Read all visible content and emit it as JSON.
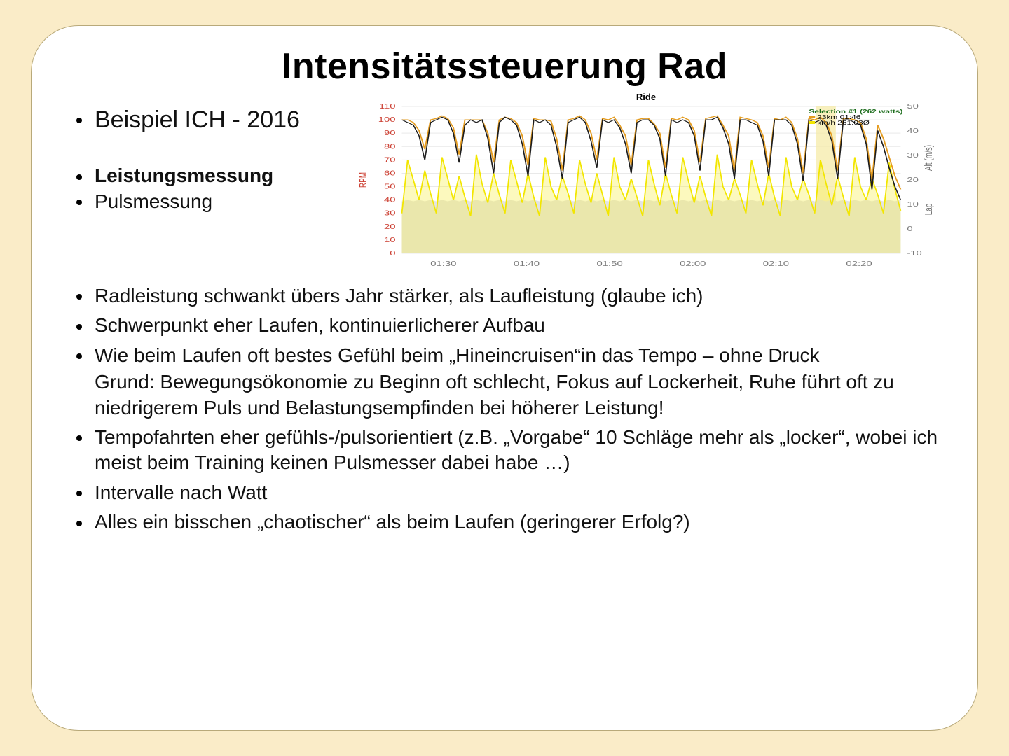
{
  "title": "Intensitätssteuerung Rad",
  "top_list": {
    "example": "Beispiel ICH - 2016",
    "power": "Leistungsmessung",
    "pulse": "Pulsmessung"
  },
  "main_list": {
    "i0": "Radleistung schwankt übers Jahr stärker, als Laufleistung (glaube ich)",
    "i1": "Schwerpunkt eher Laufen, kontinuierlicherer Aufbau",
    "i2": "Wie beim Laufen oft bestes Gefühl beim „Hineincruisen“in das Tempo – ohne Druck",
    "i2b": "Grund: Bewegungsökonomie zu Beginn oft schlecht, Fokus auf Lockerheit, Ruhe führt oft zu niedrigerem Puls und Belastungsempfinden bei höherer Leistung!",
    "i3": "Tempofahrten eher gefühls-/pulsorientiert (z.B. „Vorgabe“ 10 Schläge mehr als „locker“, wobei ich meist beim Training keinen Pulsmesser dabei habe …)",
    "i4": "Intervalle nach Watt",
    "i5": "Alles ein bisschen „chaotischer“ als beim Laufen (geringerer Erfolg?)"
  },
  "chart": {
    "title": "Ride",
    "plot_bg": "#ffffff",
    "grey_fill": "#e3e3e3",
    "grid_color": "#e9e9e9",
    "yellow_line": "#f2e600",
    "yellow_fill": "#f7ef44",
    "orange_line": "#e59c1f",
    "black_line": "#1c1c1c",
    "highlight_fill": "#f5e9a3",
    "x_ticks": [
      "01:30",
      "01:40",
      "01:50",
      "02:00",
      "02:10",
      "02:20"
    ],
    "y_left_ticks": [
      0,
      10,
      20,
      30,
      40,
      50,
      60,
      70,
      80,
      90,
      100,
      110
    ],
    "y_right_ticks": [
      -10,
      0,
      10,
      20,
      30,
      40,
      50
    ],
    "y_left_title": "RPM",
    "y_right_title_top": "Alt (m/s)",
    "y_right_title_bot": "Lap",
    "legend": {
      "title": "Selection #1 (262 watts)",
      "line1": "23km 01:46",
      "line2": "km/h 261.03Ø"
    },
    "black_series": [
      100,
      98,
      96,
      88,
      70,
      98,
      100,
      102,
      100,
      90,
      68,
      96,
      100,
      98,
      100,
      86,
      60,
      98,
      102,
      100,
      96,
      82,
      58,
      100,
      98,
      100,
      96,
      80,
      56,
      98,
      100,
      102,
      98,
      84,
      64,
      100,
      98,
      100,
      94,
      82,
      60,
      98,
      100,
      100,
      96,
      86,
      58,
      100,
      98,
      100,
      98,
      88,
      62,
      100,
      100,
      102,
      94,
      82,
      56,
      100,
      100,
      98,
      96,
      84,
      58,
      100,
      100,
      100,
      96,
      82,
      54,
      100,
      98,
      100,
      96,
      84,
      56,
      100,
      100,
      98,
      96,
      82,
      48,
      92,
      80,
      64,
      50,
      40
    ],
    "orange_series": [
      100,
      100,
      98,
      92,
      78,
      100,
      101,
      103,
      101,
      94,
      74,
      100,
      100,
      100,
      100,
      90,
      68,
      100,
      102,
      101,
      98,
      88,
      66,
      101,
      100,
      100,
      99,
      86,
      62,
      100,
      101,
      103,
      100,
      90,
      70,
      101,
      100,
      102,
      96,
      88,
      66,
      100,
      101,
      101,
      97,
      90,
      64,
      101,
      100,
      102,
      100,
      92,
      68,
      101,
      102,
      103,
      96,
      88,
      62,
      102,
      101,
      100,
      98,
      88,
      64,
      101,
      100,
      102,
      98,
      86,
      60,
      101,
      100,
      102,
      98,
      88,
      62,
      101,
      101,
      100,
      98,
      86,
      55,
      96,
      86,
      72,
      58,
      48
    ],
    "yellow_series": [
      30,
      70,
      55,
      40,
      62,
      45,
      30,
      72,
      56,
      40,
      58,
      42,
      28,
      74,
      52,
      38,
      60,
      44,
      30,
      70,
      54,
      38,
      60,
      42,
      28,
      72,
      50,
      40,
      58,
      45,
      30,
      70,
      52,
      38,
      60,
      44,
      28,
      72,
      50,
      40,
      56,
      42,
      28,
      70,
      52,
      36,
      60,
      44,
      30,
      72,
      54,
      38,
      58,
      42,
      28,
      74,
      50,
      40,
      56,
      44,
      30,
      70,
      52,
      36,
      60,
      42,
      28,
      72,
      50,
      40,
      56,
      44,
      30,
      70,
      52,
      36,
      58,
      42,
      28,
      72,
      50,
      40,
      56,
      44,
      30,
      68,
      48,
      32
    ],
    "grey_series": [
      39,
      40,
      39,
      40,
      39,
      40,
      39,
      40,
      39,
      40,
      39,
      40,
      39,
      40,
      39,
      40,
      39,
      40,
      39,
      40,
      39,
      40,
      39,
      40,
      39,
      40,
      39,
      40,
      39,
      40,
      39,
      40,
      39,
      40,
      39,
      40,
      39,
      40,
      39,
      40,
      39,
      40,
      39,
      40,
      39,
      40,
      39,
      40,
      39,
      40,
      39,
      40,
      39,
      40,
      39,
      40,
      39,
      40,
      39,
      40,
      39,
      40,
      39,
      40,
      39,
      40,
      39,
      40,
      39,
      40,
      39,
      40,
      39,
      40,
      39,
      40,
      39,
      40,
      39,
      40,
      39,
      40,
      39,
      40,
      39,
      40,
      39,
      40
    ],
    "highlight_range": [
      0.83,
      0.87
    ]
  }
}
